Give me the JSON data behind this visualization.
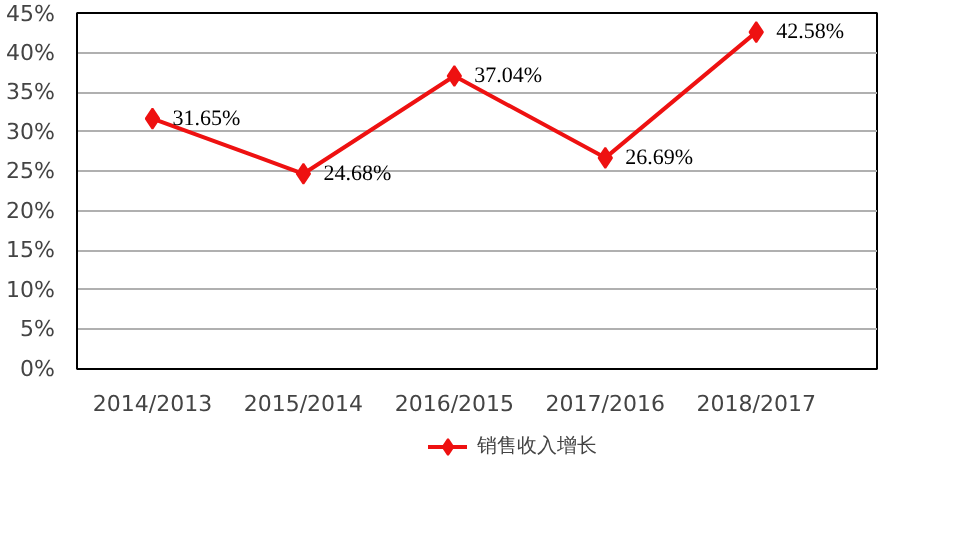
{
  "chart_data": {
    "type": "line",
    "categories": [
      "2014/2013",
      "2015/2014",
      "2016/2015",
      "2017/2016",
      "2018/2017"
    ],
    "series": [
      {
        "name": "销售收入增长",
        "color": "#ee1111",
        "values": [
          31.65,
          24.68,
          37.04,
          26.69,
          42.58
        ],
        "value_labels": [
          "31.65%",
          "24.68%",
          "37.04%",
          "26.69%",
          "42.58%"
        ]
      }
    ],
    "ylim": [
      0,
      45
    ],
    "yticks": [
      {
        "value": 0,
        "label": "0%"
      },
      {
        "value": 5,
        "label": "5%"
      },
      {
        "value": 10,
        "label": "10%"
      },
      {
        "value": 15,
        "label": "15%"
      },
      {
        "value": 20,
        "label": "20%"
      },
      {
        "value": 25,
        "label": "25%"
      },
      {
        "value": 30,
        "label": "30%"
      },
      {
        "value": 35,
        "label": "35%"
      },
      {
        "value": 40,
        "label": "40%"
      },
      {
        "value": 45,
        "label": "45%"
      }
    ],
    "grid": "y",
    "legend": "bottom",
    "marker": "diamond",
    "line_style": "solid"
  }
}
